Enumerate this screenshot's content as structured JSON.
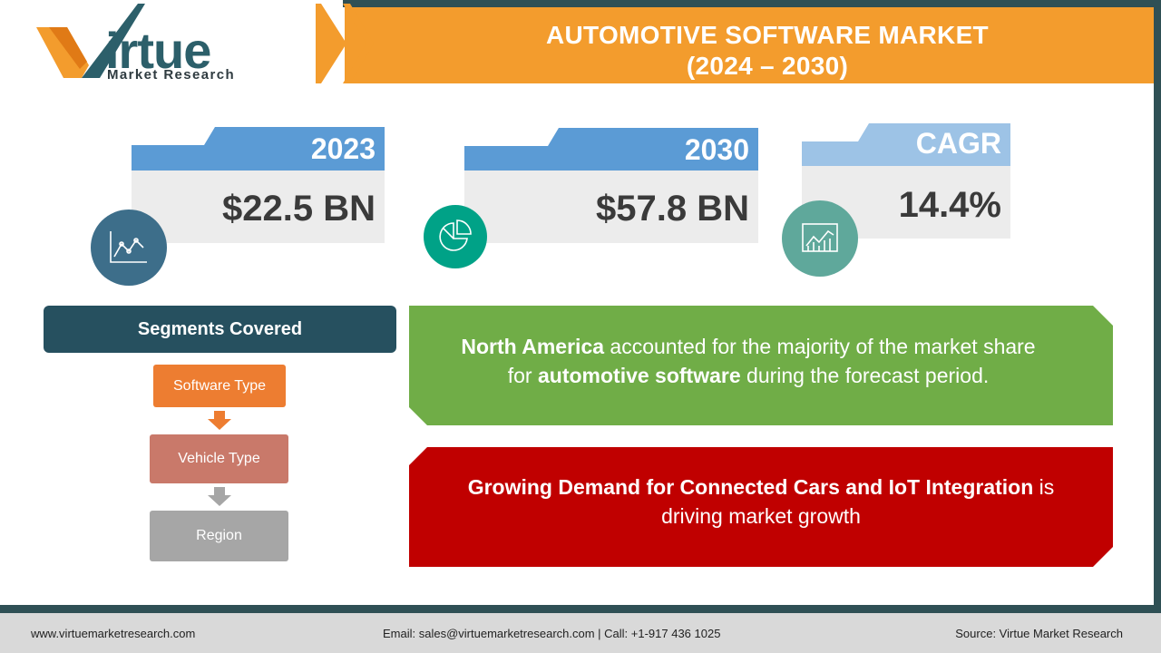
{
  "brand": {
    "logo_letter": "V",
    "logo_word": "irtue",
    "logo_sub": "Market Research"
  },
  "header": {
    "title_line1": "AUTOMOTIVE SOFTWARE MARKET",
    "title_line2": "(2024 – 2030)"
  },
  "stats": [
    {
      "label": "2023",
      "value": "$22.5 BN",
      "icon": "line-chart-icon"
    },
    {
      "label": "2030",
      "value": "$57.8 BN",
      "icon": "pie-chart-icon"
    },
    {
      "label": "CAGR",
      "value": "14.4%",
      "icon": "growth-chart-icon"
    }
  ],
  "segments": {
    "title": "Segments Covered",
    "items": [
      "Software Type",
      "Vehicle Type",
      "Region"
    ]
  },
  "callouts": {
    "green": {
      "bold1": "North America",
      "text1": " accounted for the majority of the market share",
      "text2": "for ",
      "bold2": "automotive software",
      "text3": " during the forecast period."
    },
    "red": {
      "bold1": "Growing Demand for Connected Cars and IoT Integration",
      "text1": " is",
      "text2": "driving market growth"
    }
  },
  "footer": {
    "website": "www.virtuemarketresearch.com",
    "contact": "Email: sales@virtuemarketresearch.com | Call: +1-917 436 1025",
    "source": "Source: Virtue Market Research"
  },
  "colors": {
    "orange": "#f39c2d",
    "teal_dark": "#2f5055",
    "card_blue": "#5b9bd5",
    "card_blue_light": "#9dc3e6",
    "green": "#70ad47",
    "red": "#c00000"
  }
}
